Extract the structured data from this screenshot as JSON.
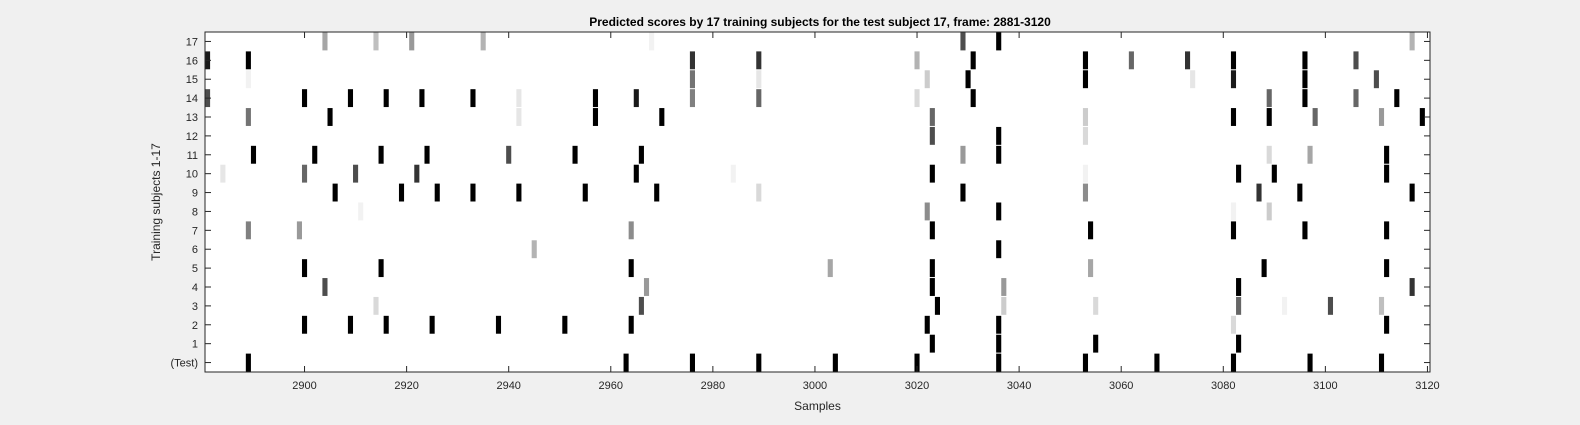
{
  "chart_data": {
    "type": "heatmap",
    "title": "Predicted scores by 17 training subjects for the test subject 17, frame: 2881-3120",
    "xlabel": "Samples",
    "ylabel": "Training subjects 1-17",
    "xlim": [
      2881,
      3120
    ],
    "x_ticks": [
      2900,
      2920,
      2940,
      2960,
      2980,
      3000,
      3020,
      3040,
      3060,
      3080,
      3100,
      3120
    ],
    "row_labels": [
      "17",
      "16",
      "15",
      "14",
      "13",
      "12",
      "11",
      "10",
      "9",
      "8",
      "7",
      "6",
      "5",
      "4",
      "3",
      "2",
      "1",
      "(Test)"
    ],
    "colormap": "gray (white = 0, black = 1)",
    "background_color": "#ffffff",
    "figure_color": "#f0f0f0",
    "rows": [
      {
        "label": "17",
        "cells": [
          [
            2904,
            0.35
          ],
          [
            2914,
            0.25
          ],
          [
            2921,
            0.4
          ],
          [
            2935,
            0.3
          ],
          [
            2968,
            0.05
          ],
          [
            3029,
            0.7
          ],
          [
            3036,
            1.0
          ],
          [
            3117,
            0.3
          ]
        ]
      },
      {
        "label": "16",
        "cells": [
          [
            2881,
            0.9
          ],
          [
            2889,
            1.0
          ],
          [
            2976,
            0.8
          ],
          [
            2989,
            0.8
          ],
          [
            3020,
            0.3
          ],
          [
            3031,
            1.0
          ],
          [
            3053,
            1.0
          ],
          [
            3062,
            0.6
          ],
          [
            3073,
            0.8
          ],
          [
            3082,
            1.0
          ],
          [
            3096,
            1.0
          ],
          [
            3106,
            0.7
          ]
        ]
      },
      {
        "label": "15",
        "cells": [
          [
            2889,
            0.05
          ],
          [
            2976,
            0.55
          ],
          [
            2989,
            0.1
          ],
          [
            3022,
            0.2
          ],
          [
            3030,
            1.0
          ],
          [
            3053,
            1.0
          ],
          [
            3074,
            0.1
          ],
          [
            3082,
            0.9
          ],
          [
            3096,
            1.0
          ],
          [
            3110,
            0.7
          ]
        ]
      },
      {
        "label": "14",
        "cells": [
          [
            2881,
            0.7
          ],
          [
            2900,
            1.0
          ],
          [
            2909,
            1.0
          ],
          [
            2916,
            1.0
          ],
          [
            2923,
            1.0
          ],
          [
            2933,
            1.0
          ],
          [
            2942,
            0.1
          ],
          [
            2957,
            1.0
          ],
          [
            2965,
            0.9
          ],
          [
            2976,
            0.5
          ],
          [
            2989,
            0.6
          ],
          [
            3020,
            0.15
          ],
          [
            3031,
            1.0
          ],
          [
            3089,
            0.6
          ],
          [
            3096,
            1.0
          ],
          [
            3106,
            0.6
          ],
          [
            3114,
            1.0
          ]
        ]
      },
      {
        "label": "13",
        "cells": [
          [
            2889,
            0.55
          ],
          [
            2905,
            1.0
          ],
          [
            2942,
            0.1
          ],
          [
            2957,
            1.0
          ],
          [
            2970,
            1.0
          ],
          [
            3023,
            0.6
          ],
          [
            3053,
            0.2
          ],
          [
            3082,
            1.0
          ],
          [
            3089,
            1.0
          ],
          [
            3098,
            0.6
          ],
          [
            3111,
            0.4
          ],
          [
            3119,
            1.0
          ]
        ]
      },
      {
        "label": "12",
        "cells": [
          [
            3023,
            0.7
          ],
          [
            3036,
            1.0
          ],
          [
            3053,
            0.15
          ]
        ]
      },
      {
        "label": "11",
        "cells": [
          [
            2890,
            1.0
          ],
          [
            2902,
            1.0
          ],
          [
            2915,
            1.0
          ],
          [
            2924,
            1.0
          ],
          [
            2940,
            0.7
          ],
          [
            2953,
            1.0
          ],
          [
            2966,
            1.0
          ],
          [
            3029,
            0.4
          ],
          [
            3036,
            1.0
          ],
          [
            3089,
            0.15
          ],
          [
            3097,
            0.35
          ],
          [
            3112,
            1.0
          ]
        ]
      },
      {
        "label": "10",
        "cells": [
          [
            2884,
            0.1
          ],
          [
            2900,
            0.6
          ],
          [
            2910,
            0.7
          ],
          [
            2922,
            0.8
          ],
          [
            2965,
            1.0
          ],
          [
            2984,
            0.05
          ],
          [
            3023,
            1.0
          ],
          [
            3053,
            0.05
          ],
          [
            3083,
            1.0
          ],
          [
            3090,
            1.0
          ],
          [
            3112,
            1.0
          ]
        ]
      },
      {
        "label": "9",
        "cells": [
          [
            2906,
            1.0
          ],
          [
            2919,
            1.0
          ],
          [
            2926,
            1.0
          ],
          [
            2933,
            1.0
          ],
          [
            2942,
            1.0
          ],
          [
            2955,
            1.0
          ],
          [
            2969,
            1.0
          ],
          [
            2989,
            0.15
          ],
          [
            3029,
            1.0
          ],
          [
            3053,
            0.45
          ],
          [
            3087,
            0.8
          ],
          [
            3095,
            1.0
          ],
          [
            3117,
            1.0
          ]
        ]
      },
      {
        "label": "8",
        "cells": [
          [
            2911,
            0.05
          ],
          [
            3022,
            0.45
          ],
          [
            3036,
            1.0
          ],
          [
            3082,
            0.05
          ],
          [
            3089,
            0.2
          ]
        ]
      },
      {
        "label": "7",
        "cells": [
          [
            2889,
            0.5
          ],
          [
            2899,
            0.4
          ],
          [
            2964,
            0.45
          ],
          [
            3023,
            1.0
          ],
          [
            3054,
            1.0
          ],
          [
            3082,
            1.0
          ],
          [
            3096,
            1.0
          ],
          [
            3112,
            1.0
          ]
        ]
      },
      {
        "label": "6",
        "cells": [
          [
            2945,
            0.3
          ],
          [
            3036,
            1.0
          ]
        ]
      },
      {
        "label": "5",
        "cells": [
          [
            2900,
            1.0
          ],
          [
            2915,
            1.0
          ],
          [
            2964,
            1.0
          ],
          [
            3003,
            0.35
          ],
          [
            3023,
            1.0
          ],
          [
            3054,
            0.35
          ],
          [
            3088,
            1.0
          ],
          [
            3112,
            1.0
          ]
        ]
      },
      {
        "label": "4",
        "cells": [
          [
            2904,
            0.7
          ],
          [
            2967,
            0.4
          ],
          [
            3023,
            1.0
          ],
          [
            3037,
            0.4
          ],
          [
            3083,
            1.0
          ],
          [
            3117,
            0.8
          ]
        ]
      },
      {
        "label": "3",
        "cells": [
          [
            2914,
            0.15
          ],
          [
            2966,
            0.7
          ],
          [
            3024,
            1.0
          ],
          [
            3037,
            0.2
          ],
          [
            3055,
            0.15
          ],
          [
            3083,
            0.6
          ],
          [
            3092,
            0.05
          ],
          [
            3101,
            0.7
          ],
          [
            3111,
            0.25
          ]
        ]
      },
      {
        "label": "2",
        "cells": [
          [
            2900,
            1.0
          ],
          [
            2909,
            1.0
          ],
          [
            2916,
            1.0
          ],
          [
            2925,
            1.0
          ],
          [
            2938,
            1.0
          ],
          [
            2951,
            1.0
          ],
          [
            2964,
            1.0
          ],
          [
            3022,
            1.0
          ],
          [
            3036,
            1.0
          ],
          [
            3082,
            0.15
          ],
          [
            3112,
            1.0
          ]
        ]
      },
      {
        "label": "1",
        "cells": [
          [
            3023,
            1.0
          ],
          [
            3036,
            1.0
          ],
          [
            3055,
            1.0
          ],
          [
            3083,
            1.0
          ]
        ]
      },
      {
        "label": "(Test)",
        "cells": [
          [
            2889,
            1.0
          ],
          [
            2963,
            1.0
          ],
          [
            2976,
            1.0
          ],
          [
            2989,
            1.0
          ],
          [
            3004,
            1.0
          ],
          [
            3020,
            1.0
          ],
          [
            3036,
            1.0
          ],
          [
            3053,
            1.0
          ],
          [
            3067,
            1.0
          ],
          [
            3082,
            1.0
          ],
          [
            3097,
            1.0
          ],
          [
            3111,
            1.0
          ]
        ]
      }
    ]
  }
}
